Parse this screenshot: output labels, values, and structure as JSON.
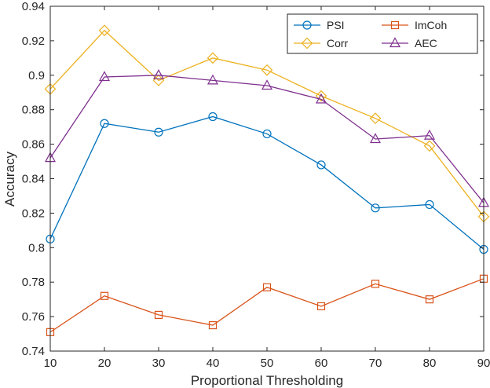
{
  "chart_data": {
    "type": "line",
    "xlabel": "Proportional Thresholding",
    "ylabel": "Accuracy",
    "x": [
      10,
      20,
      30,
      40,
      50,
      60,
      70,
      80,
      90
    ],
    "xlim": [
      10,
      90
    ],
    "ylim": [
      0.74,
      0.94
    ],
    "xticks": [
      "10",
      "20",
      "30",
      "40",
      "50",
      "60",
      "70",
      "80",
      "90"
    ],
    "yticks": [
      "0.74",
      "0.76",
      "0.78",
      "0.8",
      "0.82",
      "0.84",
      "0.86",
      "0.88",
      "0.9",
      "0.92",
      "0.94"
    ],
    "ytick_values": [
      0.74,
      0.76,
      0.78,
      0.8,
      0.82,
      0.84,
      0.86,
      0.88,
      0.9,
      0.92,
      0.94
    ],
    "grid": false,
    "legend_position": "top-right",
    "series": [
      {
        "name": "PSI",
        "marker": "circle",
        "color": "#0072BD",
        "values": [
          0.805,
          0.872,
          0.867,
          0.876,
          0.866,
          0.848,
          0.823,
          0.825,
          0.799
        ]
      },
      {
        "name": "ImCoh",
        "marker": "square",
        "color": "#D95319",
        "values": [
          0.751,
          0.772,
          0.761,
          0.755,
          0.777,
          0.766,
          0.779,
          0.77,
          0.782
        ]
      },
      {
        "name": "Corr",
        "marker": "diamond",
        "color": "#EDB120",
        "values": [
          0.892,
          0.926,
          0.897,
          0.91,
          0.903,
          0.888,
          0.875,
          0.859,
          0.818
        ]
      },
      {
        "name": "AEC",
        "marker": "triangle",
        "color": "#7E2F8E",
        "values": [
          0.852,
          0.899,
          0.9,
          0.897,
          0.894,
          0.886,
          0.863,
          0.865,
          0.826
        ]
      }
    ]
  }
}
